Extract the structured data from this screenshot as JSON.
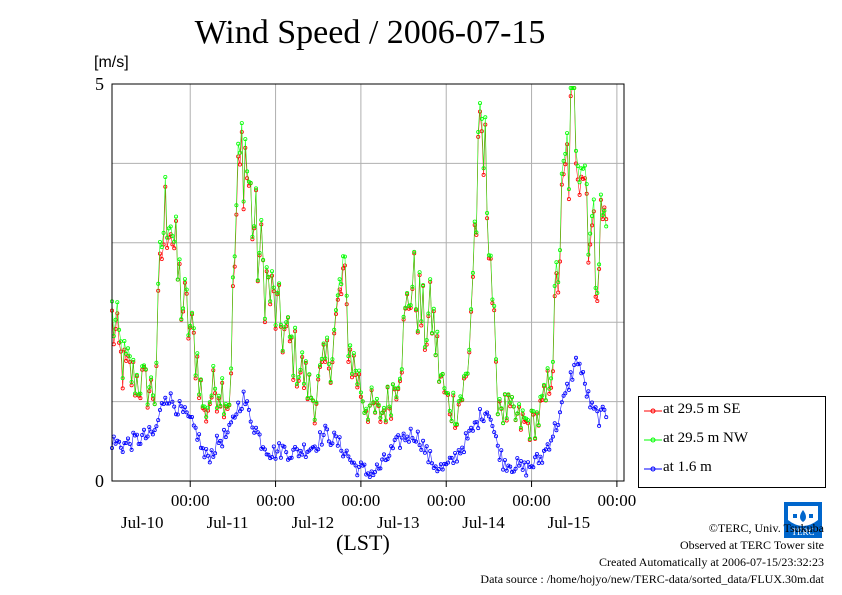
{
  "chart_data": {
    "type": "line",
    "title": "Wind Speed / 2006-07-15",
    "ylabel": "[m/s]",
    "xlabel": "(LST)",
    "ylim": [
      0,
      5
    ],
    "ytick_labels": [
      "0",
      "5"
    ],
    "x_range_hours": [
      0,
      144
    ],
    "x_ticks": [
      {
        "time": "00:00",
        "date": "Jul-10"
      },
      {
        "time": "00:00",
        "date": "Jul-11"
      },
      {
        "time": "00:00",
        "date": "Jul-12"
      },
      {
        "time": "00:00",
        "date": "Jul-13"
      },
      {
        "time": "00:00",
        "date": "Jul-14"
      },
      {
        "time": "00:00",
        "date": "Jul-15"
      }
    ],
    "grid": true,
    "legend_position": "bottom-right",
    "series": [
      {
        "name": "at 29.5 m SE",
        "color": "#ff0000",
        "keypoints": [
          [
            0,
            2.0
          ],
          [
            3,
            1.4
          ],
          [
            6,
            1.3
          ],
          [
            9,
            1.2
          ],
          [
            12,
            1.1
          ],
          [
            14,
            2.9
          ],
          [
            16,
            3.6
          ],
          [
            18,
            2.7
          ],
          [
            20,
            2.2
          ],
          [
            22,
            1.9
          ],
          [
            24,
            1.5
          ],
          [
            26,
            0.8
          ],
          [
            28,
            1.1
          ],
          [
            30,
            1.2
          ],
          [
            33,
            1.0
          ],
          [
            35,
            3.3
          ],
          [
            37,
            4.3
          ],
          [
            39,
            3.5
          ],
          [
            41,
            2.9
          ],
          [
            44,
            2.4
          ],
          [
            47,
            2.0
          ],
          [
            50,
            1.7
          ],
          [
            53,
            1.4
          ],
          [
            55,
            1.2
          ],
          [
            57,
            1.0
          ],
          [
            59,
            1.3
          ],
          [
            62,
            1.7
          ],
          [
            65,
            2.5
          ],
          [
            67,
            1.6
          ],
          [
            69,
            1.3
          ],
          [
            71,
            1.0
          ],
          [
            73,
            0.9
          ],
          [
            75,
            0.8
          ],
          [
            78,
            1.0
          ],
          [
            80,
            1.3
          ],
          [
            82,
            1.8
          ],
          [
            84,
            2.5
          ],
          [
            86,
            2.3
          ],
          [
            88,
            1.9
          ],
          [
            90,
            2.1
          ],
          [
            92,
            1.4
          ],
          [
            94,
            1.0
          ],
          [
            97,
            0.9
          ],
          [
            100,
            1.3
          ],
          [
            102,
            3.1
          ],
          [
            104,
            4.2
          ],
          [
            106,
            3.5
          ],
          [
            108,
            1.2
          ],
          [
            110,
            0.9
          ],
          [
            113,
            0.8
          ],
          [
            116,
            0.7
          ],
          [
            118,
            0.7
          ],
          [
            120,
            0.8
          ],
          [
            122,
            1.0
          ],
          [
            124,
            1.6
          ],
          [
            126,
            3.0
          ],
          [
            128,
            3.9
          ],
          [
            130,
            4.6
          ],
          [
            132,
            4.3
          ],
          [
            134,
            3.4
          ],
          [
            136,
            2.7
          ],
          [
            138,
            3.3
          ],
          [
            139,
            3.2
          ]
        ]
      },
      {
        "name": "at 29.5 m NW",
        "color": "#00ff00",
        "keypoints": [
          [
            0,
            2.1
          ],
          [
            3,
            1.5
          ],
          [
            6,
            1.3
          ],
          [
            9,
            1.2
          ],
          [
            12,
            1.1
          ],
          [
            14,
            3.0
          ],
          [
            16,
            3.7
          ],
          [
            18,
            2.7
          ],
          [
            20,
            2.2
          ],
          [
            22,
            1.9
          ],
          [
            24,
            1.5
          ],
          [
            26,
            0.8
          ],
          [
            28,
            1.1
          ],
          [
            30,
            1.2
          ],
          [
            33,
            1.0
          ],
          [
            35,
            3.4
          ],
          [
            37,
            4.4
          ],
          [
            39,
            3.5
          ],
          [
            41,
            2.9
          ],
          [
            44,
            2.4
          ],
          [
            47,
            2.0
          ],
          [
            50,
            1.7
          ],
          [
            53,
            1.4
          ],
          [
            55,
            1.2
          ],
          [
            57,
            1.0
          ],
          [
            59,
            1.3
          ],
          [
            62,
            1.7
          ],
          [
            65,
            2.6
          ],
          [
            67,
            1.6
          ],
          [
            69,
            1.3
          ],
          [
            71,
            1.0
          ],
          [
            73,
            0.9
          ],
          [
            75,
            0.8
          ],
          [
            78,
            1.0
          ],
          [
            80,
            1.3
          ],
          [
            82,
            1.8
          ],
          [
            84,
            2.5
          ],
          [
            86,
            2.3
          ],
          [
            88,
            1.9
          ],
          [
            90,
            2.1
          ],
          [
            92,
            1.4
          ],
          [
            94,
            1.0
          ],
          [
            97,
            0.9
          ],
          [
            100,
            1.3
          ],
          [
            102,
            3.1
          ],
          [
            104,
            4.3
          ],
          [
            106,
            3.5
          ],
          [
            108,
            1.2
          ],
          [
            110,
            0.9
          ],
          [
            113,
            0.8
          ],
          [
            116,
            0.7
          ],
          [
            118,
            0.7
          ],
          [
            120,
            0.8
          ],
          [
            122,
            1.0
          ],
          [
            124,
            1.7
          ],
          [
            126,
            3.1
          ],
          [
            128,
            4.0
          ],
          [
            130,
            4.8
          ],
          [
            132,
            4.4
          ],
          [
            134,
            3.5
          ],
          [
            136,
            2.8
          ],
          [
            138,
            3.3
          ],
          [
            139,
            3.1
          ]
        ]
      },
      {
        "name": "at 1.6 m",
        "color": "#0000ff",
        "keypoints": [
          [
            0,
            0.5
          ],
          [
            3,
            0.45
          ],
          [
            6,
            0.5
          ],
          [
            9,
            0.55
          ],
          [
            12,
            0.6
          ],
          [
            15,
            1.1
          ],
          [
            18,
            0.95
          ],
          [
            21,
            0.8
          ],
          [
            24,
            0.6
          ],
          [
            26,
            0.3
          ],
          [
            28,
            0.35
          ],
          [
            30,
            0.5
          ],
          [
            33,
            0.6
          ],
          [
            35,
            0.9
          ],
          [
            37,
            1.05
          ],
          [
            39,
            0.8
          ],
          [
            42,
            0.5
          ],
          [
            45,
            0.35
          ],
          [
            48,
            0.4
          ],
          [
            51,
            0.35
          ],
          [
            54,
            0.4
          ],
          [
            57,
            0.45
          ],
          [
            60,
            0.6
          ],
          [
            63,
            0.5
          ],
          [
            66,
            0.35
          ],
          [
            68,
            0.2
          ],
          [
            70,
            0.15
          ],
          [
            72,
            0.1
          ],
          [
            74,
            0.12
          ],
          [
            76,
            0.2
          ],
          [
            79,
            0.4
          ],
          [
            82,
            0.55
          ],
          [
            85,
            0.6
          ],
          [
            87,
            0.5
          ],
          [
            89,
            0.3
          ],
          [
            91,
            0.2
          ],
          [
            93,
            0.15
          ],
          [
            95,
            0.2
          ],
          [
            98,
            0.4
          ],
          [
            101,
            0.6
          ],
          [
            104,
            0.85
          ],
          [
            106,
            0.9
          ],
          [
            108,
            0.5
          ],
          [
            110,
            0.25
          ],
          [
            113,
            0.2
          ],
          [
            116,
            0.15
          ],
          [
            118,
            0.2
          ],
          [
            121,
            0.3
          ],
          [
            123,
            0.5
          ],
          [
            125,
            0.7
          ],
          [
            127,
            1.0
          ],
          [
            129,
            1.3
          ],
          [
            131,
            1.55
          ],
          [
            133,
            1.2
          ],
          [
            135,
            0.9
          ],
          [
            137,
            0.8
          ],
          [
            139,
            0.85
          ]
        ]
      }
    ]
  },
  "footer": {
    "copyright": "©TERC, Univ. Tsukuba",
    "observed": "Observed at TERC Tower site",
    "created": "Created Automatically at 2006-07-15/23:32:23",
    "source": "Data source : /home/hojyo/new/TERC-data/sorted_data/FLUX.30m.dat"
  },
  "logo": {
    "text": "TERC",
    "color": "#0066cc"
  }
}
